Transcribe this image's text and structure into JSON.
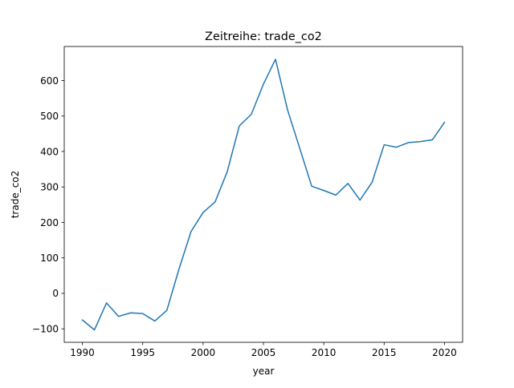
{
  "chart_data": {
    "type": "line",
    "title": "Zeitreihe: trade_co2",
    "xlabel": "year",
    "ylabel": "trade_co2",
    "xlim": [
      1988.5,
      2021.5
    ],
    "ylim": [
      -138,
      696
    ],
    "xticks": [
      1990,
      1995,
      2000,
      2005,
      2010,
      2015,
      2020
    ],
    "yticks": [
      -100,
      0,
      100,
      200,
      300,
      400,
      500,
      600
    ],
    "grid": false,
    "series": [
      {
        "color": "#1f77b4",
        "x": [
          1990,
          1991,
          1992,
          1993,
          1994,
          1995,
          1996,
          1997,
          1998,
          1999,
          2000,
          2001,
          2002,
          2003,
          2004,
          2005,
          2006,
          2007,
          2008,
          2009,
          2010,
          2011,
          2012,
          2013,
          2014,
          2015,
          2016,
          2017,
          2018,
          2019,
          2020
        ],
        "y": [
          -75,
          -103,
          -27,
          -65,
          -55,
          -57,
          -78,
          -48,
          68,
          174,
          228,
          258,
          343,
          472,
          505,
          590,
          660,
          517,
          410,
          302,
          290,
          277,
          310,
          263,
          313,
          419,
          412,
          425,
          428,
          433,
          482
        ]
      }
    ]
  }
}
